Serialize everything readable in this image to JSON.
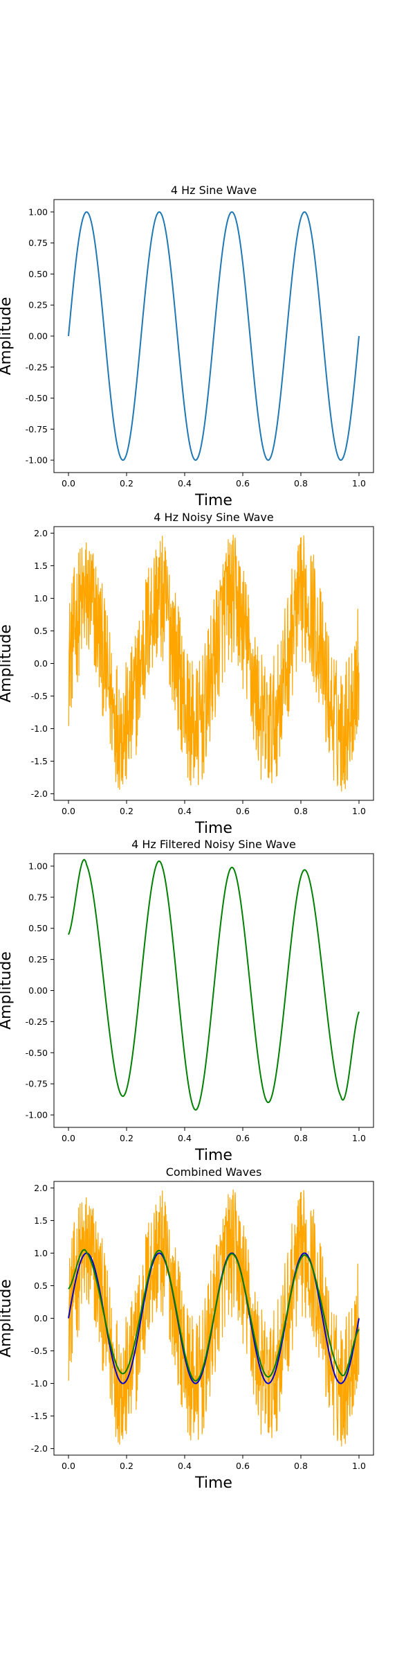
{
  "chart_data": [
    {
      "type": "line",
      "title": "4 Hz Sine Wave",
      "xlabel": "Time",
      "ylabel": "Amplitude",
      "xlim": [
        -0.05,
        1.05
      ],
      "ylim": [
        -1.1,
        1.1
      ],
      "xticks": [
        0.0,
        0.2,
        0.4,
        0.6,
        0.8,
        1.0
      ],
      "xtick_labels": [
        "0.0",
        "0.2",
        "0.4",
        "0.6",
        "0.8",
        "1.0"
      ],
      "yticks": [
        -1.0,
        -0.75,
        -0.5,
        -0.25,
        0.0,
        0.25,
        0.5,
        0.75,
        1.0
      ],
      "ytick_labels": [
        "-1.00",
        "-0.75",
        "-0.50",
        "-0.25",
        "0.00",
        "0.25",
        "0.50",
        "0.75",
        "1.00"
      ],
      "grid": false,
      "series": [
        {
          "kind": "sine",
          "frequency_hz": 4,
          "amplitude": 1.0,
          "x_range": [
            0,
            1
          ],
          "color": "#1f77b4"
        }
      ]
    },
    {
      "type": "line",
      "title": "4 Hz Noisy Sine Wave",
      "xlabel": "Time",
      "ylabel": "Amplitude",
      "xlim": [
        -0.05,
        1.05
      ],
      "ylim": [
        -2.1,
        2.1
      ],
      "xticks": [
        0.0,
        0.2,
        0.4,
        0.6,
        0.8,
        1.0
      ],
      "xtick_labels": [
        "0.0",
        "0.2",
        "0.4",
        "0.6",
        "0.8",
        "1.0"
      ],
      "yticks": [
        -2.0,
        -1.5,
        -1.0,
        -0.5,
        0.0,
        0.5,
        1.0,
        1.5,
        2.0
      ],
      "ytick_labels": [
        "-2.0",
        "-1.5",
        "-1.0",
        "-0.5",
        "0.0",
        "0.5",
        "1.0",
        "1.5",
        "2.0"
      ],
      "grid": false,
      "series": [
        {
          "kind": "noisy_sine",
          "frequency_hz": 4,
          "amplitude": 1.0,
          "noise_range": [
            -1.0,
            1.0
          ],
          "x_range": [
            0,
            1
          ],
          "color": "#ffa500"
        }
      ]
    },
    {
      "type": "line",
      "title": "4 Hz Filtered Noisy Sine Wave",
      "xlabel": "Time",
      "ylabel": "Amplitude",
      "xlim": [
        -0.05,
        1.05
      ],
      "ylim": [
        -1.1,
        1.1
      ],
      "xticks": [
        0.0,
        0.2,
        0.4,
        0.6,
        0.8,
        1.0
      ],
      "xtick_labels": [
        "0.0",
        "0.2",
        "0.4",
        "0.6",
        "0.8",
        "1.0"
      ],
      "yticks": [
        -1.0,
        -0.75,
        -0.5,
        -0.25,
        0.0,
        0.25,
        0.5,
        0.75,
        1.0
      ],
      "ytick_labels": [
        "-1.00",
        "-0.75",
        "-0.50",
        "-0.25",
        "0.00",
        "0.25",
        "0.50",
        "0.75",
        "1.00"
      ],
      "grid": false,
      "series": [
        {
          "kind": "filtered_sine",
          "frequency_hz": 4,
          "x": [
            0.0,
            0.0625,
            0.1875,
            0.3125,
            0.4375,
            0.5625,
            0.6875,
            0.8125,
            0.9375,
            1.0
          ],
          "y": [
            0.45,
            1.01,
            -0.85,
            1.04,
            -0.96,
            0.99,
            -0.9,
            0.97,
            -0.85,
            -0.17
          ],
          "color": "#008000"
        }
      ]
    },
    {
      "type": "line",
      "title": "Combined Waves",
      "xlabel": "Time",
      "ylabel": "Amplitude",
      "xlim": [
        -0.05,
        1.05
      ],
      "ylim": [
        -2.1,
        2.1
      ],
      "xticks": [
        0.0,
        0.2,
        0.4,
        0.6,
        0.8,
        1.0
      ],
      "xtick_labels": [
        "0.0",
        "0.2",
        "0.4",
        "0.6",
        "0.8",
        "1.0"
      ],
      "yticks": [
        -2.0,
        -1.5,
        -1.0,
        -0.5,
        0.0,
        0.5,
        1.0,
        1.5,
        2.0
      ],
      "ytick_labels": [
        "-2.0",
        "-1.5",
        "-1.0",
        "-0.5",
        "0.0",
        "0.5",
        "1.0",
        "1.5",
        "2.0"
      ],
      "grid": false,
      "series": [
        {
          "kind": "noisy_sine",
          "frequency_hz": 4,
          "amplitude": 1.0,
          "noise_range": [
            -1.0,
            1.0
          ],
          "x_range": [
            0,
            1
          ],
          "color": "#ffa500"
        },
        {
          "kind": "sine",
          "frequency_hz": 4,
          "amplitude": 1.0,
          "x_range": [
            0,
            1
          ],
          "color": "#0000cd"
        },
        {
          "kind": "filtered_sine",
          "frequency_hz": 4,
          "x": [
            0.0,
            0.0625,
            0.1875,
            0.3125,
            0.4375,
            0.5625,
            0.6875,
            0.8125,
            0.9375,
            1.0
          ],
          "y": [
            0.45,
            1.01,
            -0.85,
            1.04,
            -0.96,
            0.99,
            -0.9,
            0.97,
            -0.85,
            -0.17
          ],
          "color": "#008000"
        }
      ]
    }
  ]
}
